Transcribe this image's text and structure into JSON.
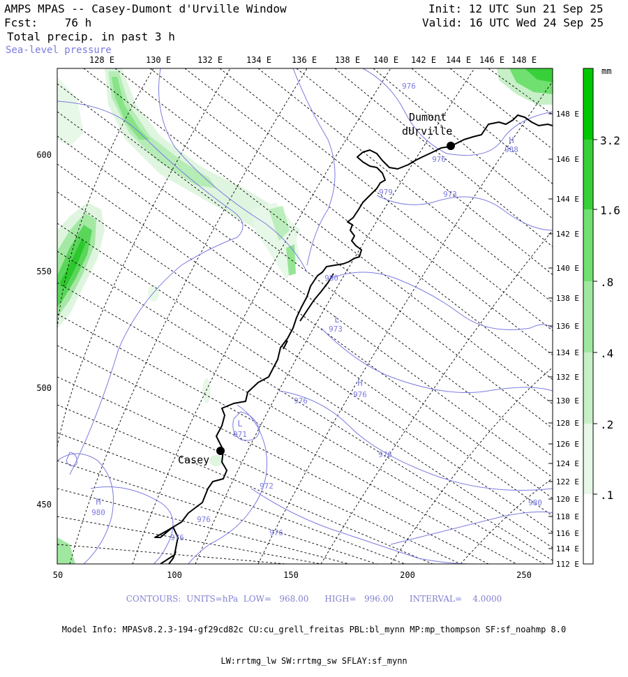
{
  "header": {
    "title": "AMPS MPAS -- Casey-Dumont d'Urville Window",
    "fcst": "Fcst:    76 h",
    "field": "Total precip. in past 3 h",
    "overlay": "Sea-level pressure",
    "init": "Init: 12 UTC Sun 21 Sep 25",
    "valid": "Valid: 16 UTC Wed 24 Sep 25"
  },
  "axes": {
    "x_ticks": [
      "50",
      "100",
      "150",
      "200",
      "250"
    ],
    "y_ticks": [
      "450",
      "500",
      "550",
      "600"
    ],
    "lon_top": [
      "128 E",
      "130 E",
      "132 E",
      "134 E",
      "136 E",
      "138 E",
      "140 E",
      "142 E",
      "144 E",
      "146 E",
      "148 E"
    ],
    "lon_right": [
      "112 E",
      "114 E",
      "116 E",
      "118 E",
      "120 E",
      "122 E",
      "124 E",
      "126 E",
      "128 E",
      "130 E",
      "132 E",
      "134 E",
      "136 E",
      "138 E",
      "140 E",
      "142 E",
      "144 E",
      "146 E",
      "148 E"
    ]
  },
  "colorbar": {
    "unit": "mm",
    "labels": [
      ".1",
      ".2",
      ".4",
      ".8",
      "1.6",
      "3.2"
    ],
    "colors": [
      "#ffffff",
      "#e8f8e8",
      "#c8f0c8",
      "#a0e8a0",
      "#70e070",
      "#38d038",
      "#00c800"
    ]
  },
  "stations": [
    {
      "name_line1": "Dumont",
      "name_line2": "dUrville"
    },
    {
      "name_line1": "Casey"
    }
  ],
  "pressure_labels": [
    {
      "text": "976"
    },
    {
      "text": "976"
    },
    {
      "text": "973"
    },
    {
      "text": "979"
    },
    {
      "text": "980"
    },
    {
      "text": "973"
    },
    {
      "text": "976"
    },
    {
      "text": "976"
    },
    {
      "text": "971"
    },
    {
      "text": "976"
    },
    {
      "text": "972"
    },
    {
      "text": "980"
    },
    {
      "text": "976"
    },
    {
      "text": "976"
    },
    {
      "text": "976"
    },
    {
      "text": "980"
    },
    {
      "text": "988"
    }
  ],
  "pressure_centers": [
    {
      "text": "H"
    },
    {
      "text": "L"
    },
    {
      "text": "H"
    },
    {
      "text": "L"
    },
    {
      "text": "H"
    }
  ],
  "colors": {
    "contour": "#7a7ae0",
    "coast": "#000000",
    "grid": "#000000"
  },
  "footer": {
    "contours": "CONTOURS:  UNITS=hPa  LOW=   968.00      HIGH=   996.00      INTERVAL=    4.0000",
    "info1": "Model Info: MPASv8.2.3-194-gf29cd82c CU:cu_grell_freitas PBL:bl_mynn MP:mp_thompson SF:sf_noahmp 8.0",
    "info2": "LW:rrtmg_lw SW:rrtmg_sw SFLAY:sf_mynn"
  }
}
